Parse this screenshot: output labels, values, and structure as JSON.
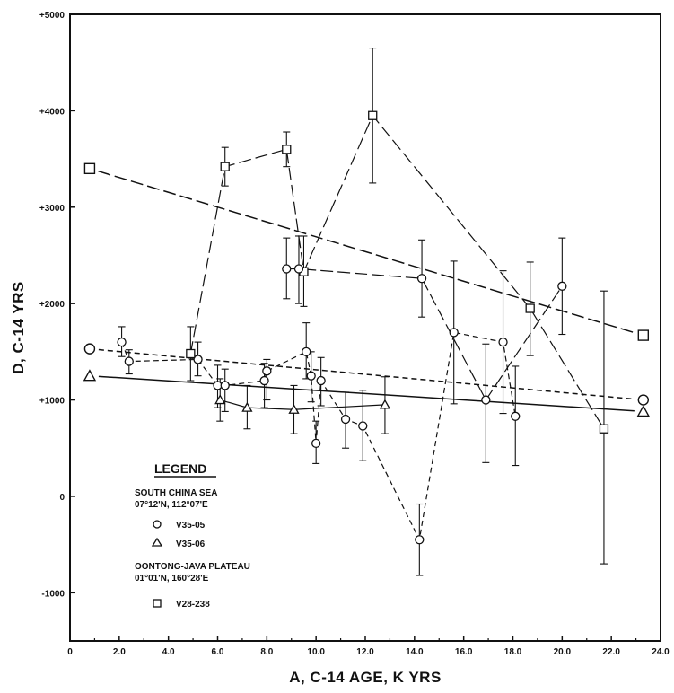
{
  "chart_data": {
    "type": "scatter",
    "xlabel": "A, C-14 AGE, K YRS",
    "ylabel": "D, C-14 YRS",
    "xlim": [
      0,
      24
    ],
    "ylim": [
      -1500,
      5000
    ],
    "x_ticks": [
      0,
      2,
      4,
      6,
      8,
      10,
      12,
      14,
      16,
      18,
      20,
      22,
      24
    ],
    "x_tick_labels": [
      "0",
      "2.0",
      "4.0",
      "6.0",
      "8.0",
      "10.0",
      "12.0",
      "14.0",
      "16.0",
      "18.0",
      "20.0",
      "22.0",
      "24.0"
    ],
    "y_ticks": [
      -1000,
      0,
      1000,
      2000,
      3000,
      4000,
      5000
    ],
    "y_tick_labels": [
      "-1000",
      "0",
      "+1000",
      "+2000",
      "+3000",
      "+4000",
      "+5000"
    ],
    "legend": {
      "placement": "lower-left",
      "title": "LEGEND",
      "groups": [
        {
          "heading": "SOUTH CHINA SEA",
          "coords": "07°12'N, 112°07'E",
          "entries": [
            {
              "marker": "circle",
              "label": "V35-05"
            },
            {
              "marker": "triangle",
              "label": "V35-06"
            }
          ]
        },
        {
          "heading": "OONTONG-JAVA PLATEAU",
          "coords": "01°01'N, 160°28'E",
          "entries": [
            {
              "marker": "square",
              "label": "V28-238"
            }
          ]
        }
      ]
    },
    "series": [
      {
        "name": "V35-05",
        "marker": "circle",
        "line": "short-dash",
        "points": [
          {
            "x": 2.1,
            "y": 1600,
            "lo": 1450,
            "hi": 1760
          },
          {
            "x": 2.4,
            "y": 1400,
            "lo": 1270,
            "hi": 1520
          },
          {
            "x": 5.2,
            "y": 1420,
            "lo": 1250,
            "hi": 1600
          },
          {
            "x": 6.0,
            "y": 1150,
            "lo": 920,
            "hi": 1360
          },
          {
            "x": 6.3,
            "y": 1150,
            "lo": 880,
            "hi": 1320
          },
          {
            "x": 7.9,
            "y": 1200,
            "lo": 920,
            "hi": 1380
          },
          {
            "x": 8.0,
            "y": 1300,
            "lo": 1000,
            "hi": 1420
          },
          {
            "x": 9.6,
            "y": 1500,
            "lo": 1220,
            "hi": 1800
          },
          {
            "x": 9.8,
            "y": 1250,
            "lo": 980,
            "hi": 1500
          },
          {
            "x": 10.0,
            "y": 550,
            "lo": 340,
            "hi": 780
          },
          {
            "x": 10.2,
            "y": 1200,
            "lo": 940,
            "hi": 1440
          },
          {
            "x": 11.2,
            "y": 800,
            "lo": 500,
            "hi": 1080
          },
          {
            "x": 11.9,
            "y": 730,
            "lo": 370,
            "hi": 1100
          },
          {
            "x": 14.2,
            "y": -450,
            "lo": -820,
            "hi": -80
          },
          {
            "x": 15.6,
            "y": 1700,
            "lo": 960,
            "hi": 2440
          },
          {
            "x": 17.6,
            "y": 1600,
            "lo": 860,
            "hi": 2340
          },
          {
            "x": 18.1,
            "y": 830,
            "lo": 320,
            "hi": 1350
          }
        ]
      },
      {
        "name": "V35-06",
        "marker": "triangle",
        "line": "solid",
        "points": [
          {
            "x": 6.1,
            "y": 1000,
            "lo": 780,
            "hi": 1220
          },
          {
            "x": 7.2,
            "y": 920,
            "lo": 700,
            "hi": 1150
          },
          {
            "x": 9.1,
            "y": 900,
            "lo": 650,
            "hi": 1150
          },
          {
            "x": 12.8,
            "y": 950,
            "lo": 650,
            "hi": 1240
          }
        ]
      },
      {
        "name": "V28-238",
        "marker": "square",
        "line": "long-dash",
        "points": [
          {
            "x": 4.9,
            "y": 1480,
            "lo": 1200,
            "hi": 1760
          },
          {
            "x": 6.3,
            "y": 3420,
            "lo": 3220,
            "hi": 3620
          },
          {
            "x": 8.8,
            "y": 3600,
            "lo": 3420,
            "hi": 3780
          },
          {
            "x": 9.5,
            "y": 2330,
            "lo": 1970,
            "hi": 2700
          },
          {
            "x": 12.3,
            "y": 3950,
            "lo": 3250,
            "hi": 4650
          },
          {
            "x": 18.7,
            "y": 1950,
            "lo": 1460,
            "hi": 2430
          },
          {
            "x": 21.7,
            "y": 700,
            "lo": -700,
            "hi": 2130
          }
        ]
      },
      {
        "name": "",
        "marker": "circle",
        "line": "long-dash",
        "points": [
          {
            "x": 8.8,
            "y": 2360,
            "lo": 2050,
            "hi": 2680
          },
          {
            "x": 9.3,
            "y": 2360,
            "lo": 2000,
            "hi": 2700
          },
          {
            "x": 14.3,
            "y": 2260,
            "lo": 1860,
            "hi": 2660
          },
          {
            "x": 16.9,
            "y": 1000,
            "lo": 350,
            "hi": 1580
          },
          {
            "x": 20.0,
            "y": 2180,
            "lo": 1680,
            "hi": 2680
          }
        ]
      }
    ],
    "regression_lines": [
      {
        "name": "V28-238",
        "line": "long-dash",
        "marker": "square",
        "x": [
          0.8,
          23.3
        ],
        "y": [
          3400,
          1670
        ]
      },
      {
        "name": "V35-05",
        "line": "short-dash",
        "marker": "circle",
        "x": [
          0.8,
          23.3
        ],
        "y": [
          1530,
          1000
        ]
      },
      {
        "name": "V35-06",
        "line": "solid",
        "marker": "triangle",
        "x": [
          0.8,
          23.3
        ],
        "y": [
          1250,
          880
        ]
      }
    ]
  }
}
